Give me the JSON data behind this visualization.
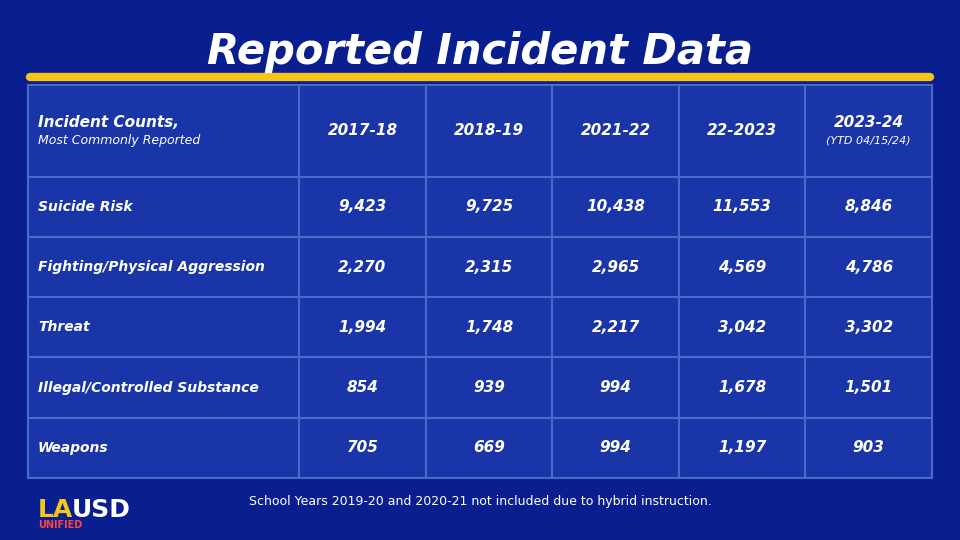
{
  "title": "Reported Incident Data",
  "bg_color": "#0A1F8F",
  "title_color": "#FFFFFF",
  "gold_line_color": "#F5C518",
  "table_bg": "#1A35A8",
  "table_border_color": "#4A6AC8",
  "header_row": [
    "Incident Counts,\nMost Commonly Reported",
    "2017-18",
    "2018-19",
    "2021-22",
    "22-2023",
    "2023-24\n(YTD 04/15/24)"
  ],
  "rows": [
    [
      "Suicide Risk",
      "9,423",
      "9,725",
      "10,438",
      "11,553",
      "8,846"
    ],
    [
      "Fighting/Physical Aggression",
      "2,270",
      "2,315",
      "2,965",
      "4,569",
      "4,786"
    ],
    [
      "Threat",
      "1,994",
      "1,748",
      "2,217",
      "3,042",
      "3,302"
    ],
    [
      "Illegal/Controlled Substance",
      "854",
      "939",
      "994",
      "1,678",
      "1,501"
    ],
    [
      "Weapons",
      "705",
      "669",
      "994",
      "1,197",
      "903"
    ]
  ],
  "footer_note": "School Years 2019-20 and 2020-21 not included due to hybrid instruction.",
  "lausd_la_color": "#F5C518",
  "lausd_usd_color": "#FFFFFF",
  "lausd_unified_color": "#FF4444",
  "text_color": "#FFFFFF"
}
